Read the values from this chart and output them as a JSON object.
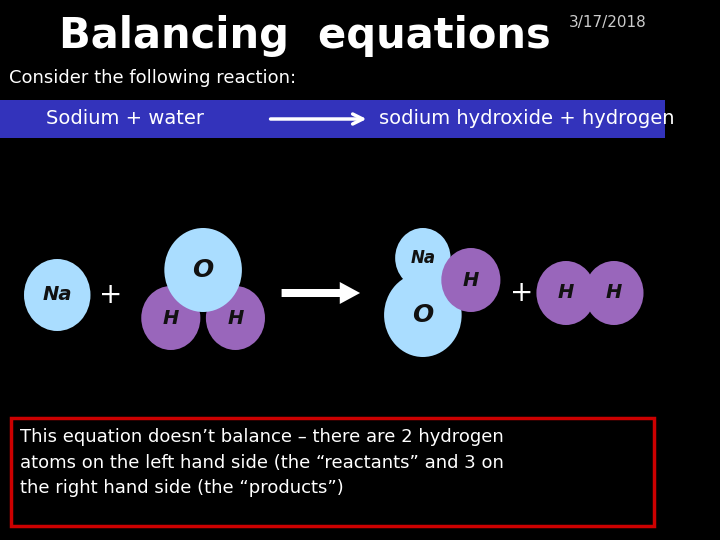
{
  "title": "Balancing  equations",
  "date": "3/17/2018",
  "subtitle": "Consider the following reaction:",
  "reaction_bar_text_left": "Sodium + water",
  "reaction_bar_text_right": "sodium hydroxide + hydrogen",
  "reaction_bar_color": "#3333bb",
  "bg_color": "#000000",
  "text_color": "#ffffff",
  "note_text": "This equation doesn’t balance – there are 2 hydrogen\natoms on the left hand side (the “reactants” and 3 on\nthe right hand side (the “products”)",
  "note_border_color": "#cc0000",
  "light_blue": "#aaddff",
  "purple": "#9966bb",
  "na_label": "Na",
  "o_label": "O",
  "h_label": "H"
}
